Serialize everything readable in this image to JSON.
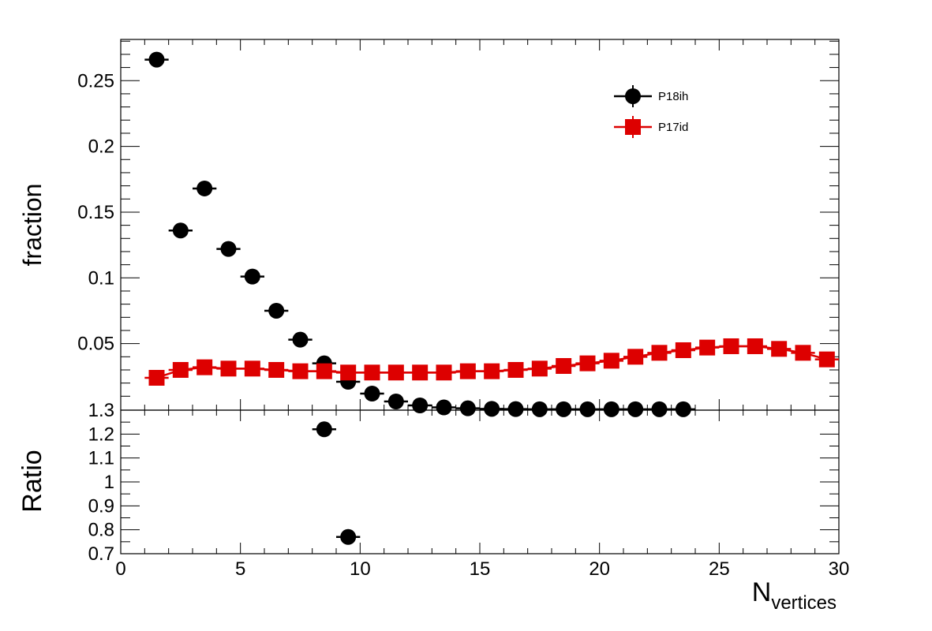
{
  "chart_data": [
    {
      "type": "scatter",
      "panel": "main",
      "ylabel": "fraction",
      "xlim": [
        0,
        30
      ],
      "ylim": [
        0,
        0.28
      ],
      "yticks": [
        {
          "value": 0.05,
          "label": "0.05"
        },
        {
          "value": 0.1,
          "label": "0.1"
        },
        {
          "value": 0.15,
          "label": "0.15"
        },
        {
          "value": 0.2,
          "label": "0.2"
        },
        {
          "value": 0.25,
          "label": "0.25"
        }
      ],
      "legend_position": "top-right",
      "series": [
        {
          "name": "P18ih",
          "color": "#000000",
          "marker": "circle",
          "x": [
            1.5,
            2.5,
            3.5,
            4.5,
            5.5,
            6.5,
            7.5,
            8.5,
            9.5,
            10.5,
            11.5,
            12.5,
            13.5,
            14.5,
            15.5,
            16.5,
            17.5,
            18.5,
            19.5,
            20.5,
            21.5,
            22.5,
            23.5
          ],
          "y": [
            0.266,
            0.136,
            0.168,
            0.122,
            0.101,
            0.075,
            0.053,
            0.035,
            0.021,
            0.012,
            0.006,
            0.003,
            0.0015,
            0.0008,
            0.0004,
            0.0002,
            0.0001,
            0.0001,
            0.0001,
            0.0001,
            0.0001,
            0.0001,
            0.0001
          ]
        },
        {
          "name": "P17id",
          "color": "#dd0000",
          "marker": "square",
          "x": [
            1.5,
            2.5,
            3.5,
            4.5,
            5.5,
            6.5,
            7.5,
            8.5,
            9.5,
            10.5,
            11.5,
            12.5,
            13.5,
            14.5,
            15.5,
            16.5,
            17.5,
            18.5,
            19.5,
            20.5,
            21.5,
            22.5,
            23.5,
            24.5,
            25.5,
            26.5,
            27.5,
            28.5,
            29.5
          ],
          "y": [
            0.024,
            0.03,
            0.032,
            0.031,
            0.031,
            0.03,
            0.029,
            0.029,
            0.028,
            0.028,
            0.028,
            0.028,
            0.028,
            0.029,
            0.029,
            0.03,
            0.031,
            0.033,
            0.035,
            0.037,
            0.04,
            0.043,
            0.045,
            0.047,
            0.048,
            0.048,
            0.046,
            0.043,
            0.038
          ]
        }
      ]
    },
    {
      "type": "scatter",
      "panel": "ratio",
      "ylabel": "Ratio",
      "xlabel": "N",
      "xlabel_subscript": "vertices",
      "xlim": [
        0,
        30
      ],
      "ylim": [
        0.7,
        1.3
      ],
      "xticks": [
        {
          "value": 0,
          "label": "0"
        },
        {
          "value": 5,
          "label": "5"
        },
        {
          "value": 10,
          "label": "10"
        },
        {
          "value": 15,
          "label": "15"
        },
        {
          "value": 20,
          "label": "20"
        },
        {
          "value": 25,
          "label": "25"
        },
        {
          "value": 30,
          "label": "30"
        }
      ],
      "yticks": [
        {
          "value": 0.7,
          "label": "0.7"
        },
        {
          "value": 0.8,
          "label": "0.8"
        },
        {
          "value": 0.9,
          "label": "0.9"
        },
        {
          "value": 1.0,
          "label": "1"
        },
        {
          "value": 1.1,
          "label": "1.1"
        },
        {
          "value": 1.2,
          "label": "1.2"
        },
        {
          "value": 1.3,
          "label": "1.3"
        }
      ],
      "series": [
        {
          "color": "#000000",
          "marker": "circle",
          "x": [
            8.5,
            9.5
          ],
          "y": [
            1.22,
            0.77
          ]
        }
      ]
    }
  ]
}
